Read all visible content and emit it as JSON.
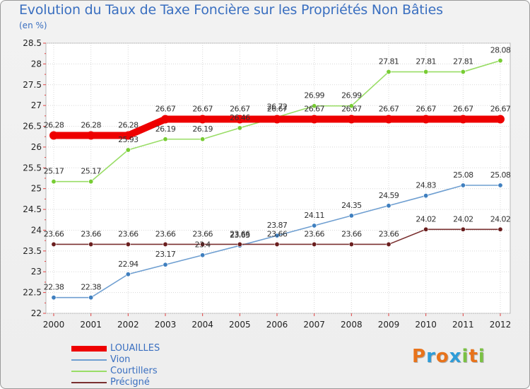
{
  "title": "Evolution du Taux de Taxe Foncière sur les Propriétés Non Bâties",
  "subtitle": "(en %)",
  "logo": {
    "text": "Proxiti",
    "colors": [
      "#e8731b",
      "#2e9cd8",
      "#e8731b",
      "#2e9cd8",
      "#7ac143",
      "#e8731b",
      "#7ac143"
    ]
  },
  "chart_data": {
    "type": "line",
    "title": "Evolution du Taux de Taxe Foncière sur les Propriétés Non Bâties",
    "ylabel": "(en %)",
    "xlabel": "",
    "ylim": [
      22,
      28.5
    ],
    "ytick_labels": [
      "22",
      "22.5",
      "23",
      "23.5",
      "24",
      "24.5",
      "25",
      "25.5",
      "26",
      "26.5",
      "27",
      "27.5",
      "28",
      "28.5"
    ],
    "categories": [
      "2000",
      "2001",
      "2002",
      "2003",
      "2004",
      "2005",
      "2006",
      "2007",
      "2008",
      "2009",
      "2010",
      "2011",
      "2012"
    ],
    "grid": true,
    "legend": "bottom-left",
    "series": [
      {
        "name": "LOUAILLES",
        "color": "#ee0000",
        "stroke": "thick",
        "values": [
          26.28,
          26.28,
          26.28,
          26.67,
          26.67,
          26.67,
          26.67,
          26.67,
          26.67,
          26.67,
          26.67,
          26.67,
          26.67
        ],
        "labels": [
          "26.28",
          "26.28",
          "26.28",
          "26.67",
          "26.67",
          "26.67",
          "26.67",
          "26.67",
          "26.67",
          "26.67",
          "26.67",
          "26.67",
          "26.67"
        ]
      },
      {
        "name": "Vion",
        "color": "#6f9fd1",
        "marker": "#3f7fbf",
        "stroke": "thin",
        "values": [
          22.38,
          22.38,
          22.94,
          23.17,
          23.4,
          23.63,
          23.87,
          24.11,
          24.35,
          24.59,
          24.83,
          25.08,
          25.08
        ],
        "labels": [
          "22.38",
          "22.38",
          "22.94",
          "23.17",
          "23.4",
          "23.63",
          "23.87",
          "24.11",
          "24.35",
          "24.59",
          "24.83",
          "25.08",
          "25.08"
        ]
      },
      {
        "name": "Courtillers",
        "color": "#99dd66",
        "marker": "#77cc33",
        "stroke": "thin",
        "values": [
          25.17,
          25.17,
          25.93,
          26.19,
          26.19,
          26.46,
          26.72,
          26.99,
          26.99,
          27.81,
          27.81,
          27.81,
          28.08
        ],
        "labels": [
          "25.17",
          "25.17",
          "25.93",
          "26.19",
          "26.19",
          "26.46",
          "26.72",
          "26.99",
          "26.99",
          "27.81",
          "27.81",
          "27.81",
          "28.08"
        ]
      },
      {
        "name": "Précigné",
        "color": "#7a3030",
        "marker": "#6a1e1e",
        "stroke": "thin",
        "values": [
          23.66,
          23.66,
          23.66,
          23.66,
          23.66,
          23.66,
          23.66,
          23.66,
          23.66,
          23.66,
          24.02,
          24.02,
          24.02
        ],
        "labels": [
          "23.66",
          "23.66",
          "23.66",
          "23.66",
          "23.66",
          "23.66",
          "23.66",
          "23.66",
          "23.66",
          "23.66",
          "24.02",
          "24.02",
          "24.02"
        ]
      }
    ]
  }
}
